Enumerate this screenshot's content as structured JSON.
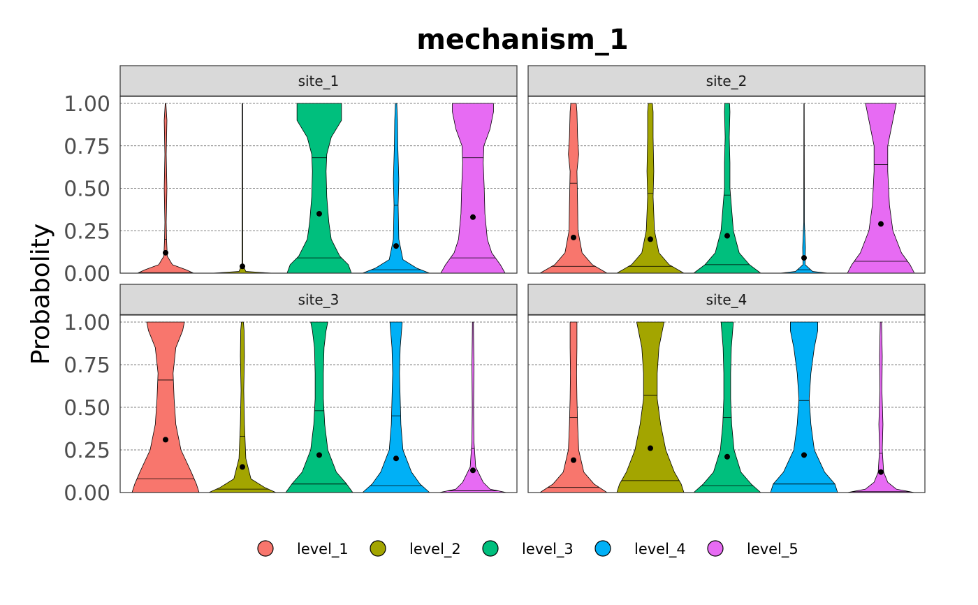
{
  "chart_data": {
    "type": "violin",
    "title": "mechanism_1",
    "ylabel": "Probabolity",
    "xlabel": "",
    "ylim": [
      0,
      1
    ],
    "y_ticks": [
      "0.00",
      "0.25",
      "0.50",
      "0.75",
      "1.00"
    ],
    "y_tick_values": [
      0,
      0.25,
      0.5,
      0.75,
      1.0
    ],
    "grid": "horizontal dashed",
    "legend_position": "bottom",
    "categories": [
      "level_1",
      "level_2",
      "level_3",
      "level_4",
      "level_5"
    ],
    "colors": {
      "level_1": "#F8766D",
      "level_2": "#A3A500",
      "level_3": "#00BF7D",
      "level_4": "#00B0F6",
      "level_5": "#E76BF3"
    },
    "panels": [
      {
        "site": "site_1",
        "violins": [
          {
            "level": "level_1",
            "mean": 0.12,
            "median": 0.2,
            "q25": 0.003,
            "widths": [
              [
                0,
                0.82
              ],
              [
                0.02,
                0.6
              ],
              [
                0.05,
                0.2
              ],
              [
                0.1,
                0.05
              ],
              [
                0.2,
                0.03
              ],
              [
                0.3,
                0.02
              ],
              [
                0.5,
                0.04
              ],
              [
                0.7,
                0.02
              ],
              [
                0.9,
                0.04
              ],
              [
                1,
                0.01
              ]
            ]
          },
          {
            "level": "level_2",
            "mean": 0.04,
            "median": 0.0,
            "q25": 0.0,
            "widths": [
              [
                0,
                0.88
              ],
              [
                0.01,
                0.1
              ],
              [
                0.05,
                0.01
              ],
              [
                1,
                0.008
              ]
            ]
          },
          {
            "level": "level_3",
            "mean": 0.35,
            "median": 0.68,
            "q25": 0.09,
            "widths": [
              [
                0,
                0.94
              ],
              [
                0.05,
                0.85
              ],
              [
                0.1,
                0.6
              ],
              [
                0.2,
                0.35
              ],
              [
                0.3,
                0.28
              ],
              [
                0.45,
                0.22
              ],
              [
                0.6,
                0.2
              ],
              [
                0.7,
                0.22
              ],
              [
                0.8,
                0.35
              ],
              [
                0.9,
                0.65
              ],
              [
                1,
                0.65
              ]
            ]
          },
          {
            "level": "level_4",
            "mean": 0.16,
            "median": 0.4,
            "q25": 0.02,
            "widths": [
              [
                0,
                0.98
              ],
              [
                0.03,
                0.6
              ],
              [
                0.08,
                0.2
              ],
              [
                0.2,
                0.08
              ],
              [
                0.4,
                0.06
              ],
              [
                0.55,
                0.08
              ],
              [
                0.75,
                0.05
              ],
              [
                0.9,
                0.04
              ],
              [
                1,
                0.02
              ]
            ]
          },
          {
            "level": "level_5",
            "mean": 0.33,
            "median": 0.68,
            "q25": 0.09,
            "widths": [
              [
                0,
                0.94
              ],
              [
                0.05,
                0.8
              ],
              [
                0.12,
                0.55
              ],
              [
                0.2,
                0.42
              ],
              [
                0.35,
                0.35
              ],
              [
                0.5,
                0.33
              ],
              [
                0.65,
                0.3
              ],
              [
                0.75,
                0.32
              ],
              [
                0.85,
                0.5
              ],
              [
                0.95,
                0.6
              ],
              [
                1,
                0.6
              ]
            ]
          }
        ]
      },
      {
        "site": "site_2",
        "violins": [
          {
            "level": "level_1",
            "mean": 0.21,
            "median": 0.53,
            "q25": 0.04,
            "widths": [
              [
                0,
                0.98
              ],
              [
                0.05,
                0.55
              ],
              [
                0.12,
                0.25
              ],
              [
                0.25,
                0.13
              ],
              [
                0.4,
                0.12
              ],
              [
                0.6,
                0.1
              ],
              [
                0.7,
                0.15
              ],
              [
                0.8,
                0.12
              ],
              [
                0.95,
                0.1
              ],
              [
                1,
                0.08
              ]
            ]
          },
          {
            "level": "level_2",
            "mean": 0.2,
            "median": 0.47,
            "q25": 0.04,
            "widths": [
              [
                0,
                0.98
              ],
              [
                0.05,
                0.55
              ],
              [
                0.12,
                0.25
              ],
              [
                0.25,
                0.12
              ],
              [
                0.45,
                0.08
              ],
              [
                0.6,
                0.1
              ],
              [
                0.8,
                0.08
              ],
              [
                0.95,
                0.08
              ],
              [
                1,
                0.06
              ]
            ]
          },
          {
            "level": "level_3",
            "mean": 0.22,
            "median": 0.46,
            "q25": 0.05,
            "widths": [
              [
                0,
                0.98
              ],
              [
                0.05,
                0.65
              ],
              [
                0.12,
                0.35
              ],
              [
                0.25,
                0.18
              ],
              [
                0.4,
                0.12
              ],
              [
                0.5,
                0.08
              ],
              [
                0.65,
                0.08
              ],
              [
                0.8,
                0.06
              ],
              [
                0.95,
                0.08
              ],
              [
                1,
                0.07
              ]
            ]
          },
          {
            "level": "level_4",
            "mean": 0.09,
            "median": 0.02,
            "q25": 0.0,
            "widths": [
              [
                0,
                0.7
              ],
              [
                0.01,
                0.25
              ],
              [
                0.05,
                0.03
              ],
              [
                0.15,
                0.04
              ],
              [
                0.3,
                0.01
              ],
              [
                1,
                0.005
              ]
            ]
          },
          {
            "level": "level_5",
            "mean": 0.29,
            "median": 0.64,
            "q25": 0.07,
            "widths": [
              [
                0,
                0.98
              ],
              [
                0.05,
                0.85
              ],
              [
                0.12,
                0.6
              ],
              [
                0.25,
                0.35
              ],
              [
                0.4,
                0.25
              ],
              [
                0.6,
                0.2
              ],
              [
                0.75,
                0.2
              ],
              [
                0.9,
                0.35
              ],
              [
                1,
                0.45
              ]
            ]
          }
        ]
      },
      {
        "site": "site_3",
        "violins": [
          {
            "level": "level_1",
            "mean": 0.31,
            "median": 0.66,
            "q25": 0.08,
            "widths": [
              [
                0,
                0.98
              ],
              [
                0.05,
                0.9
              ],
              [
                0.12,
                0.75
              ],
              [
                0.25,
                0.45
              ],
              [
                0.4,
                0.3
              ],
              [
                0.55,
                0.25
              ],
              [
                0.7,
                0.22
              ],
              [
                0.85,
                0.3
              ],
              [
                0.95,
                0.5
              ],
              [
                1,
                0.55
              ]
            ]
          },
          {
            "level": "level_2",
            "mean": 0.15,
            "median": 0.33,
            "q25": 0.02,
            "widths": [
              [
                0,
                0.98
              ],
              [
                0.03,
                0.65
              ],
              [
                0.08,
                0.25
              ],
              [
                0.2,
                0.1
              ],
              [
                0.4,
                0.06
              ],
              [
                0.6,
                0.04
              ],
              [
                0.8,
                0.06
              ],
              [
                0.95,
                0.05
              ],
              [
                1,
                0.03
              ]
            ]
          },
          {
            "level": "level_3",
            "mean": 0.22,
            "median": 0.48,
            "q25": 0.05,
            "widths": [
              [
                0,
                0.98
              ],
              [
                0.05,
                0.8
              ],
              [
                0.12,
                0.5
              ],
              [
                0.25,
                0.25
              ],
              [
                0.4,
                0.16
              ],
              [
                0.55,
                0.12
              ],
              [
                0.7,
                0.12
              ],
              [
                0.85,
                0.14
              ],
              [
                0.95,
                0.2
              ],
              [
                1,
                0.25
              ]
            ]
          },
          {
            "level": "level_4",
            "mean": 0.2,
            "median": 0.45,
            "q25": 0.04,
            "widths": [
              [
                0,
                0.98
              ],
              [
                0.05,
                0.7
              ],
              [
                0.12,
                0.45
              ],
              [
                0.25,
                0.2
              ],
              [
                0.4,
                0.14
              ],
              [
                0.55,
                0.12
              ],
              [
                0.7,
                0.1
              ],
              [
                0.85,
                0.12
              ],
              [
                1,
                0.18
              ]
            ]
          },
          {
            "level": "level_5",
            "mean": 0.13,
            "median": 0.26,
            "q25": 0.01,
            "widths": [
              [
                0,
                0.98
              ],
              [
                0.02,
                0.5
              ],
              [
                0.06,
                0.3
              ],
              [
                0.15,
                0.08
              ],
              [
                0.3,
                0.03
              ],
              [
                0.5,
                0.02
              ],
              [
                0.75,
                0.03
              ],
              [
                0.9,
                0.02
              ],
              [
                1,
                0.015
              ]
            ]
          }
        ]
      },
      {
        "site": "site_4",
        "violins": [
          {
            "level": "level_1",
            "mean": 0.19,
            "median": 0.44,
            "q25": 0.03,
            "widths": [
              [
                0,
                0.98
              ],
              [
                0.05,
                0.6
              ],
              [
                0.12,
                0.3
              ],
              [
                0.25,
                0.15
              ],
              [
                0.4,
                0.12
              ],
              [
                0.55,
                0.1
              ],
              [
                0.7,
                0.09
              ],
              [
                0.85,
                0.1
              ],
              [
                1,
                0.1
              ]
            ]
          },
          {
            "level": "level_2",
            "mean": 0.26,
            "median": 0.57,
            "q25": 0.07,
            "widths": [
              [
                0,
                0.98
              ],
              [
                0.05,
                0.9
              ],
              [
                0.12,
                0.7
              ],
              [
                0.25,
                0.45
              ],
              [
                0.4,
                0.3
              ],
              [
                0.55,
                0.2
              ],
              [
                0.7,
                0.2
              ],
              [
                0.85,
                0.25
              ],
              [
                0.95,
                0.35
              ],
              [
                1,
                0.4
              ]
            ]
          },
          {
            "level": "level_3",
            "mean": 0.21,
            "median": 0.44,
            "q25": 0.04,
            "widths": [
              [
                0,
                0.98
              ],
              [
                0.05,
                0.7
              ],
              [
                0.12,
                0.4
              ],
              [
                0.25,
                0.2
              ],
              [
                0.4,
                0.13
              ],
              [
                0.55,
                0.1
              ],
              [
                0.7,
                0.1
              ],
              [
                0.85,
                0.12
              ],
              [
                1,
                0.18
              ]
            ]
          },
          {
            "level": "level_4",
            "mean": 0.22,
            "median": 0.54,
            "q25": 0.05,
            "widths": [
              [
                0,
                0.98
              ],
              [
                0.05,
                0.9
              ],
              [
                0.12,
                0.6
              ],
              [
                0.25,
                0.3
              ],
              [
                0.4,
                0.2
              ],
              [
                0.55,
                0.15
              ],
              [
                0.7,
                0.2
              ],
              [
                0.85,
                0.3
              ],
              [
                0.95,
                0.4
              ],
              [
                1,
                0.4
              ]
            ]
          },
          {
            "level": "level_5",
            "mean": 0.12,
            "median": 0.23,
            "q25": 0.005,
            "widths": [
              [
                0,
                0.98
              ],
              [
                0.02,
                0.45
              ],
              [
                0.06,
                0.2
              ],
              [
                0.12,
                0.08
              ],
              [
                0.25,
                0.04
              ],
              [
                0.4,
                0.06
              ],
              [
                0.6,
                0.03
              ],
              [
                0.8,
                0.04
              ],
              [
                1,
                0.02
              ]
            ]
          }
        ]
      }
    ]
  }
}
